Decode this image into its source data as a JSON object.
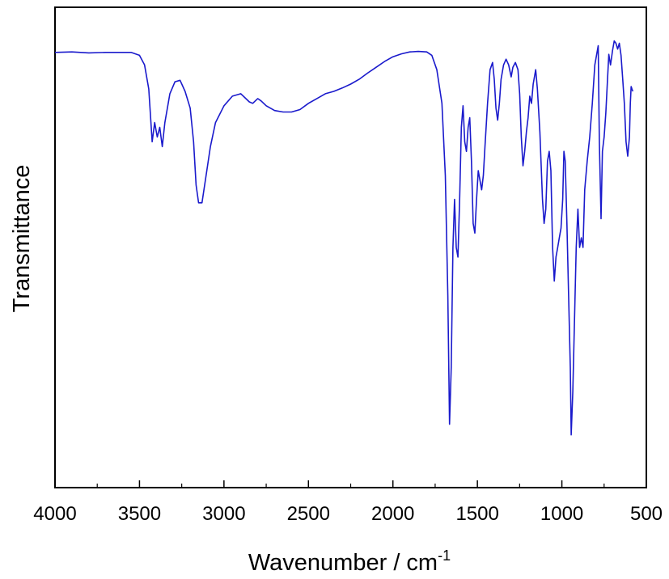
{
  "chart_data": {
    "type": "line",
    "title": "",
    "xlabel": "Wavenumber / cm",
    "xlabel_superscript": "-1",
    "ylabel": "Transmittance",
    "xlim": [
      4000,
      500
    ],
    "x_reversed": true,
    "ylim": [
      0,
      100
    ],
    "y_ticks_shown": false,
    "grid": false,
    "legend": "none",
    "x_ticks": [
      {
        "value": 4000,
        "label": "4000"
      },
      {
        "value": 3500,
        "label": "3500"
      },
      {
        "value": 3000,
        "label": "3000"
      },
      {
        "value": 2500,
        "label": "2500"
      },
      {
        "value": 2000,
        "label": "2000"
      },
      {
        "value": 1500,
        "label": "1500"
      },
      {
        "value": 1000,
        "label": "1000"
      },
      {
        "value": 500,
        "label": "500"
      }
    ],
    "x_minor_ticks": [
      3750,
      3250,
      2750,
      2250,
      1750,
      1250,
      750
    ],
    "series": [
      {
        "color": "#1a1acc",
        "points": [
          [
            4000,
            90.6
          ],
          [
            3900,
            90.7
          ],
          [
            3800,
            90.5
          ],
          [
            3700,
            90.6
          ],
          [
            3600,
            90.6
          ],
          [
            3550,
            90.6
          ],
          [
            3500,
            90.0
          ],
          [
            3470,
            88.0
          ],
          [
            3445,
            83.0
          ],
          [
            3425,
            72.0
          ],
          [
            3410,
            76.0
          ],
          [
            3395,
            73.0
          ],
          [
            3380,
            75.0
          ],
          [
            3365,
            71.0
          ],
          [
            3350,
            76.0
          ],
          [
            3320,
            82.0
          ],
          [
            3290,
            84.5
          ],
          [
            3260,
            84.8
          ],
          [
            3230,
            82.5
          ],
          [
            3200,
            79.0
          ],
          [
            3180,
            72.0
          ],
          [
            3165,
            63.0
          ],
          [
            3150,
            59.3
          ],
          [
            3130,
            59.3
          ],
          [
            3110,
            64.0
          ],
          [
            3080,
            71.0
          ],
          [
            3050,
            76.0
          ],
          [
            3000,
            79.5
          ],
          [
            2950,
            81.5
          ],
          [
            2900,
            82.0
          ],
          [
            2850,
            80.3
          ],
          [
            2830,
            80.0
          ],
          [
            2800,
            81.0
          ],
          [
            2780,
            80.5
          ],
          [
            2750,
            79.5
          ],
          [
            2700,
            78.5
          ],
          [
            2650,
            78.2
          ],
          [
            2600,
            78.2
          ],
          [
            2550,
            78.7
          ],
          [
            2500,
            80.0
          ],
          [
            2450,
            81.0
          ],
          [
            2400,
            82.0
          ],
          [
            2350,
            82.5
          ],
          [
            2300,
            83.2
          ],
          [
            2250,
            84.0
          ],
          [
            2200,
            85.0
          ],
          [
            2150,
            86.3
          ],
          [
            2100,
            87.5
          ],
          [
            2050,
            88.7
          ],
          [
            2000,
            89.7
          ],
          [
            1950,
            90.3
          ],
          [
            1900,
            90.7
          ],
          [
            1850,
            90.8
          ],
          [
            1800,
            90.7
          ],
          [
            1770,
            90.0
          ],
          [
            1740,
            87.0
          ],
          [
            1710,
            80.0
          ],
          [
            1690,
            65.0
          ],
          [
            1675,
            40.0
          ],
          [
            1665,
            13.2
          ],
          [
            1655,
            25.0
          ],
          [
            1645,
            50.0
          ],
          [
            1635,
            60.0
          ],
          [
            1625,
            50.0
          ],
          [
            1615,
            48.0
          ],
          [
            1605,
            60.0
          ],
          [
            1595,
            75.0
          ],
          [
            1585,
            79.5
          ],
          [
            1575,
            72.0
          ],
          [
            1565,
            70.0
          ],
          [
            1555,
            75.0
          ],
          [
            1545,
            77.0
          ],
          [
            1535,
            68.0
          ],
          [
            1525,
            55.0
          ],
          [
            1515,
            53.0
          ],
          [
            1505,
            60.0
          ],
          [
            1495,
            66.0
          ],
          [
            1485,
            64.0
          ],
          [
            1475,
            62.0
          ],
          [
            1465,
            65.0
          ],
          [
            1455,
            71.0
          ],
          [
            1440,
            80.0
          ],
          [
            1425,
            87.0
          ],
          [
            1410,
            88.5
          ],
          [
            1400,
            85.0
          ],
          [
            1390,
            79.0
          ],
          [
            1380,
            76.5
          ],
          [
            1370,
            80.0
          ],
          [
            1360,
            85.0
          ],
          [
            1345,
            88.0
          ],
          [
            1330,
            89.2
          ],
          [
            1315,
            88.0
          ],
          [
            1300,
            85.5
          ],
          [
            1290,
            87.5
          ],
          [
            1275,
            88.5
          ],
          [
            1260,
            87.0
          ],
          [
            1250,
            82.0
          ],
          [
            1240,
            73.0
          ],
          [
            1230,
            67.0
          ],
          [
            1220,
            70.0
          ],
          [
            1210,
            74.0
          ],
          [
            1200,
            77.0
          ],
          [
            1190,
            81.5
          ],
          [
            1180,
            80.0
          ],
          [
            1170,
            84.0
          ],
          [
            1155,
            87.0
          ],
          [
            1145,
            83.0
          ],
          [
            1130,
            74.0
          ],
          [
            1115,
            60.0
          ],
          [
            1105,
            55.0
          ],
          [
            1095,
            58.0
          ],
          [
            1085,
            68.0
          ],
          [
            1075,
            70.0
          ],
          [
            1065,
            66.0
          ],
          [
            1055,
            50.0
          ],
          [
            1045,
            43.0
          ],
          [
            1035,
            48.0
          ],
          [
            1025,
            50.0
          ],
          [
            1015,
            52.0
          ],
          [
            1005,
            54.0
          ],
          [
            995,
            60.0
          ],
          [
            988,
            70.0
          ],
          [
            980,
            68.0
          ],
          [
            970,
            55.0
          ],
          [
            960,
            40.0
          ],
          [
            950,
            25.0
          ],
          [
            945,
            11.0
          ],
          [
            935,
            20.0
          ],
          [
            925,
            35.0
          ],
          [
            915,
            50.0
          ],
          [
            905,
            58.0
          ],
          [
            895,
            50.0
          ],
          [
            885,
            52.0
          ],
          [
            875,
            50.0
          ],
          [
            865,
            62.0
          ],
          [
            850,
            68.0
          ],
          [
            835,
            73.0
          ],
          [
            820,
            80.0
          ],
          [
            805,
            88.0
          ],
          [
            795,
            90.0
          ],
          [
            785,
            92.0
          ],
          [
            778,
            72.0
          ],
          [
            768,
            56.0
          ],
          [
            760,
            70.0
          ],
          [
            750,
            73.0
          ],
          [
            740,
            78.0
          ],
          [
            730,
            85.0
          ],
          [
            722,
            90.2
          ],
          [
            712,
            88.0
          ],
          [
            700,
            91.0
          ],
          [
            690,
            93.0
          ],
          [
            680,
            92.5
          ],
          [
            670,
            91.3
          ],
          [
            660,
            92.5
          ],
          [
            650,
            90.0
          ],
          [
            640,
            85.0
          ],
          [
            630,
            80.0
          ],
          [
            620,
            72.0
          ],
          [
            610,
            69.0
          ],
          [
            600,
            73.0
          ],
          [
            595,
            80.0
          ],
          [
            590,
            83.5
          ],
          [
            585,
            83.0
          ],
          [
            580,
            82.5
          ]
        ]
      }
    ]
  }
}
